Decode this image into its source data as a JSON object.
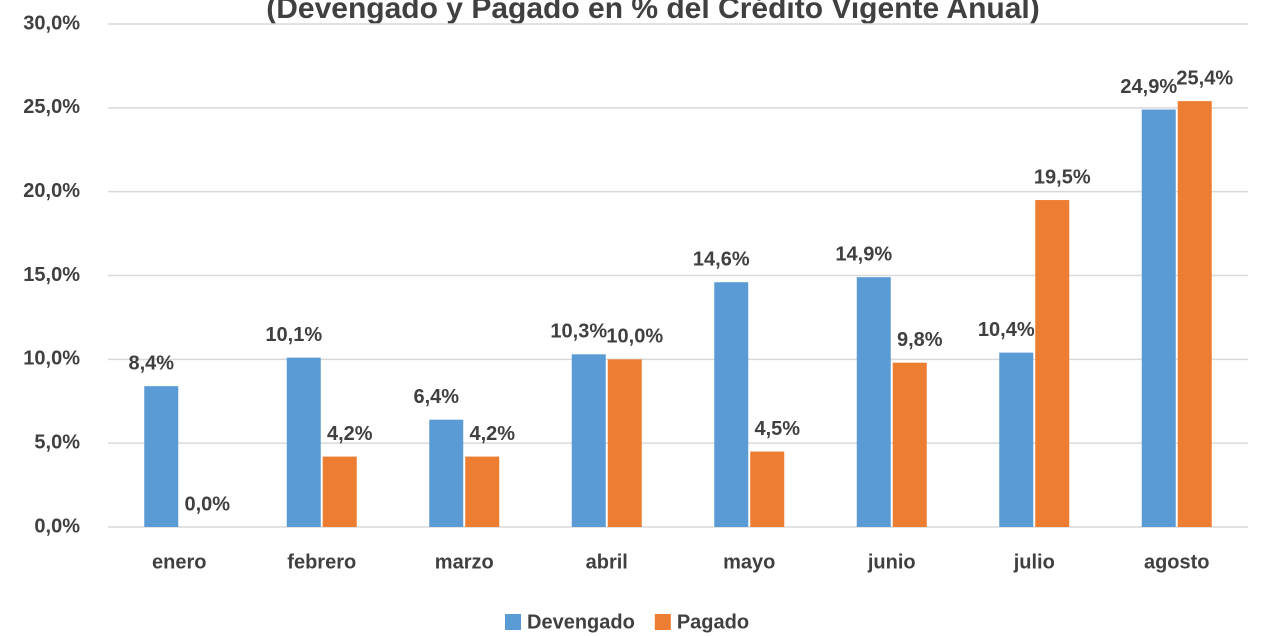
{
  "chart_data": {
    "type": "bar",
    "title": "(Devengado y Pagado en % del Crédito Vigente Anual)",
    "categories": [
      "enero",
      "febrero",
      "marzo",
      "abril",
      "mayo",
      "junio",
      "julio",
      "agosto"
    ],
    "series": [
      {
        "name": "Devengado",
        "color": "#5b9bd5",
        "values": [
          8.4,
          10.1,
          6.4,
          10.3,
          14.6,
          14.9,
          10.4,
          24.9
        ],
        "value_labels": [
          "8,4%",
          "10,1%",
          "6,4%",
          "10,3%",
          "14,6%",
          "14,9%",
          "10,4%",
          "24,9%"
        ]
      },
      {
        "name": "Pagado",
        "color": "#ed7d31",
        "values": [
          0.0,
          4.2,
          4.2,
          10.0,
          4.5,
          9.8,
          19.5,
          25.4
        ],
        "value_labels": [
          "0,0%",
          "4,2%",
          "4,2%",
          "10,0%",
          "4,5%",
          "9,8%",
          "19,5%",
          "25,4%"
        ]
      }
    ],
    "ylim": [
      0,
      30
    ],
    "yticks": [
      {
        "value": 0,
        "label": "0,0%"
      },
      {
        "value": 5,
        "label": "5,0%"
      },
      {
        "value": 10,
        "label": "10,0%"
      },
      {
        "value": 15,
        "label": "15,0%"
      },
      {
        "value": 20,
        "label": "20,0%"
      },
      {
        "value": 25,
        "label": "25,0%"
      },
      {
        "value": 30,
        "label": "30,0%"
      }
    ],
    "grid": true,
    "legend": "bottom"
  }
}
